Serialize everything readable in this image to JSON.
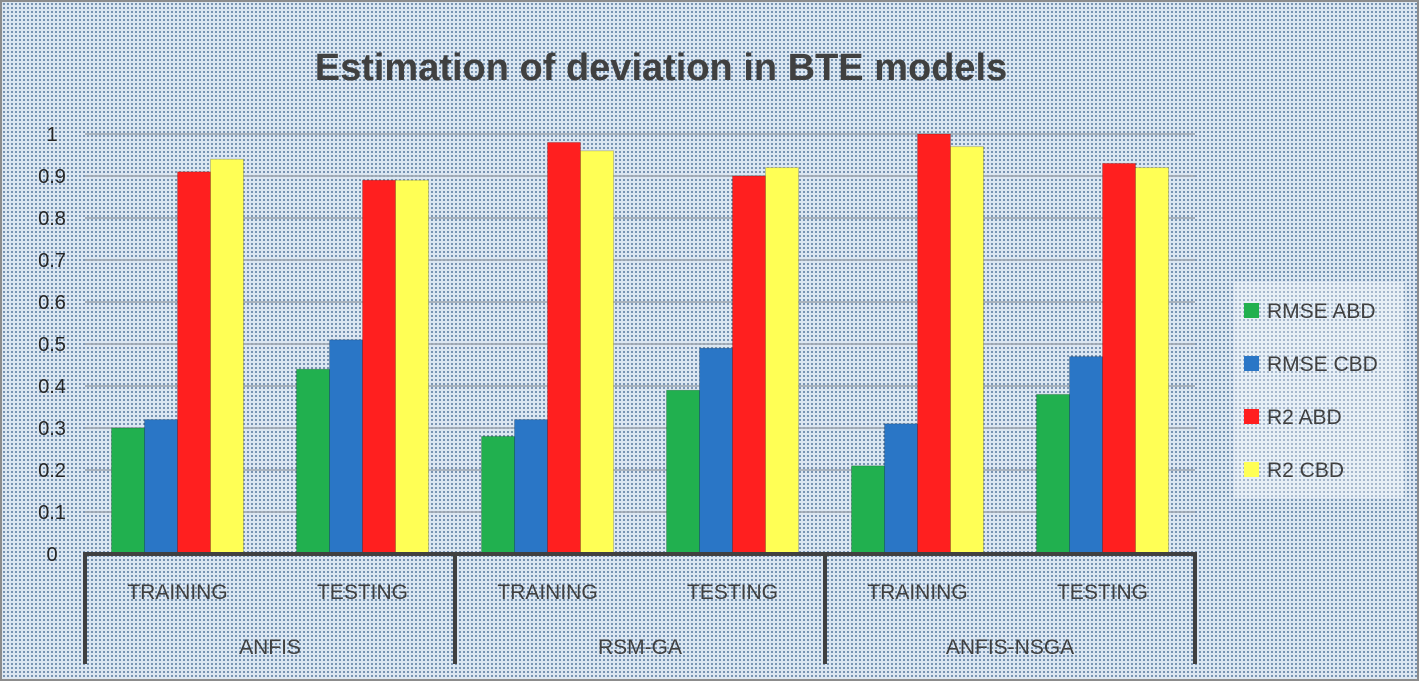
{
  "chart_data": {
    "type": "bar",
    "title": "Estimation of deviation in BTE models",
    "xlabel": "",
    "ylabel": "",
    "ylim": [
      0,
      1
    ],
    "yticks": [
      "0",
      "0.1",
      "0.2",
      "0.3",
      "0.4",
      "0.5",
      "0.6",
      "0.7",
      "0.8",
      "0.9",
      "1"
    ],
    "grid": true,
    "legend_position": "right",
    "groups": [
      "ANFIS",
      "RSM-GA",
      "ANFIS-NSGA"
    ],
    "categories": [
      "TRAINING",
      "TESTING",
      "TRAINING",
      "TESTING",
      "TRAINING",
      "TESTING"
    ],
    "series": [
      {
        "name": "RMSE ABD",
        "color": "#21b04f",
        "values": [
          0.3,
          0.44,
          0.28,
          0.39,
          0.21,
          0.38
        ]
      },
      {
        "name": "RMSE CBD",
        "color": "#2a76c6",
        "values": [
          0.32,
          0.51,
          0.32,
          0.49,
          0.31,
          0.47
        ]
      },
      {
        "name": "R2 ABD",
        "color": "#ff1f1f",
        "values": [
          0.91,
          0.89,
          0.98,
          0.9,
          1.0,
          0.93
        ]
      },
      {
        "name": "R2 CBD",
        "color": "#ffff55",
        "values": [
          0.94,
          0.89,
          0.96,
          0.92,
          0.97,
          0.92
        ]
      }
    ]
  }
}
